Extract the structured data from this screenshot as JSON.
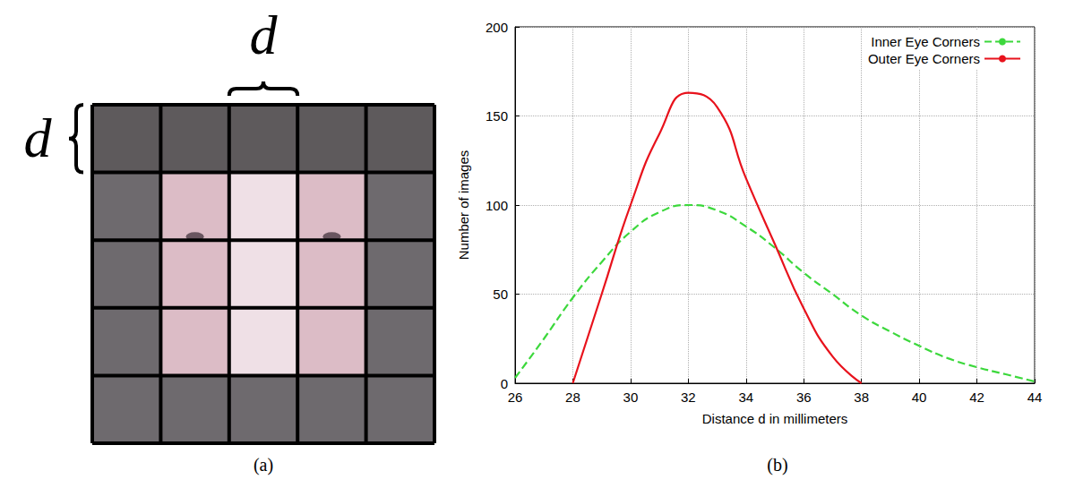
{
  "diagram": {
    "panel_label": "(a)",
    "rows": 5,
    "cols": 5,
    "width_label": "d",
    "height_label": "d"
  },
  "chart_data": {
    "type": "line",
    "panel_label": "(b)",
    "x_label": "Distance d in millimeters",
    "y_label": "Number of images",
    "x": [
      26,
      27,
      28,
      29,
      30,
      31,
      32,
      33,
      34,
      35,
      36,
      37,
      38,
      39,
      40,
      41,
      42,
      43,
      44
    ],
    "series": [
      {
        "name": "Inner Eye Corners",
        "color": "#3cd83c",
        "line_style": "dashed",
        "values": [
          3,
          25,
          48,
          68,
          85,
          96,
          100,
          97,
          88,
          76,
          62,
          50,
          38,
          29,
          21,
          14,
          9,
          5,
          1
        ]
      },
      {
        "name": "Outer Eye Corners",
        "color": "#e8121c",
        "line_style": "solid",
        "values": [
          null,
          null,
          0,
          50,
          100,
          140,
          163,
          155,
          115,
          78,
          42,
          15,
          0,
          null,
          null,
          null,
          null,
          null,
          null
        ]
      }
    ],
    "xlim": [
      26,
      44
    ],
    "xticks": [
      26,
      28,
      30,
      32,
      34,
      36,
      38,
      40,
      42,
      44
    ],
    "ylim": [
      0,
      200
    ],
    "yticks": [
      0,
      50,
      100,
      150,
      200
    ],
    "grid": true,
    "legend": "upper right"
  }
}
